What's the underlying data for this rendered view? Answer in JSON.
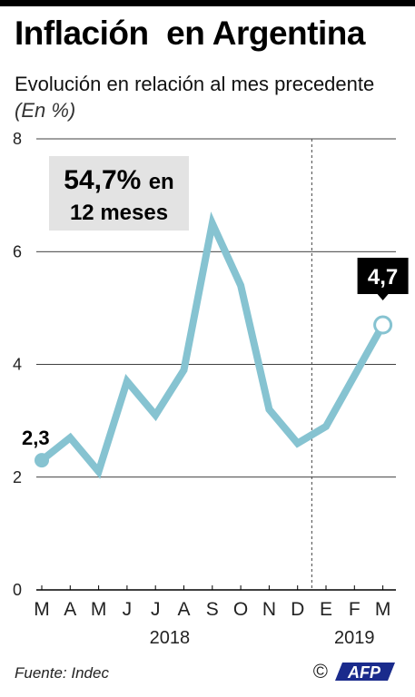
{
  "header": {
    "title": "Inflación  en Argentina",
    "subtitle": "Evolución en relación al mes precedente",
    "unit": "(En %)"
  },
  "annotation": {
    "big": "54,7%",
    "rest1": "en",
    "rest2": "12 meses"
  },
  "footer": {
    "source": "Fuente: Indec",
    "credit_symbol": "©",
    "credit_logo": "AFP"
  },
  "colors": {
    "line": "#86c3d1",
    "grid": "#000000",
    "callout_bg": "#e3e3e3",
    "label_bg": "#000000"
  },
  "chart_data": {
    "type": "line",
    "title": "Inflación  en Argentina",
    "subtitle": "Evolución en relación al mes precedente (En %)",
    "x": [
      "M",
      "A",
      "M",
      "J",
      "J",
      "A",
      "S",
      "O",
      "N",
      "D",
      "E",
      "F",
      "M"
    ],
    "x_years": [
      {
        "label": "2018",
        "from": 0,
        "to": 9
      },
      {
        "label": "2019",
        "from": 10,
        "to": 12
      }
    ],
    "series": [
      {
        "values": [
          2.3,
          2.7,
          2.1,
          3.7,
          3.1,
          3.9,
          6.5,
          5.4,
          3.2,
          2.6,
          2.9,
          3.8,
          4.7
        ]
      }
    ],
    "ylim": [
      0,
      8
    ],
    "yticks": [
      0,
      2,
      4,
      6,
      8
    ],
    "ytick_labels": [
      "0",
      "2",
      "4",
      "6",
      "8"
    ],
    "year_divider_after_index": 9,
    "point_labels": [
      {
        "index": 0,
        "text": "2,3"
      },
      {
        "index": 12,
        "text": "4,7"
      }
    ],
    "grid": true
  }
}
